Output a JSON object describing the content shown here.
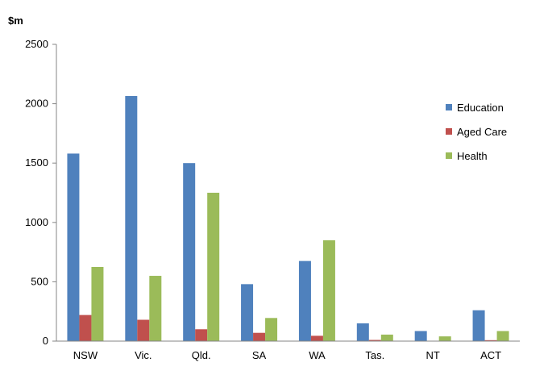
{
  "chart_data": {
    "type": "bar",
    "ylabel": "$m",
    "ylim": [
      0,
      2500
    ],
    "yticks": [
      0,
      500,
      1000,
      1500,
      2000,
      2500
    ],
    "ytick_labels": [
      "0",
      "500",
      "1000",
      "1500",
      "2000",
      "2500"
    ],
    "grid": false,
    "legend_position": "right",
    "categories": [
      "NSW",
      "Vic.",
      "Qld.",
      "SA",
      "WA",
      "Tas.",
      "NT",
      "ACT"
    ],
    "series": [
      {
        "name": "Education",
        "color": "#4F81BD",
        "values": [
          1580,
          2065,
          1500,
          480,
          675,
          150,
          85,
          260
        ]
      },
      {
        "name": "Aged Care",
        "color": "#C0504D",
        "values": [
          220,
          180,
          100,
          70,
          45,
          10,
          3,
          8
        ]
      },
      {
        "name": "Health",
        "color": "#9BBB59",
        "values": [
          625,
          550,
          1250,
          195,
          850,
          55,
          40,
          85
        ]
      }
    ]
  }
}
